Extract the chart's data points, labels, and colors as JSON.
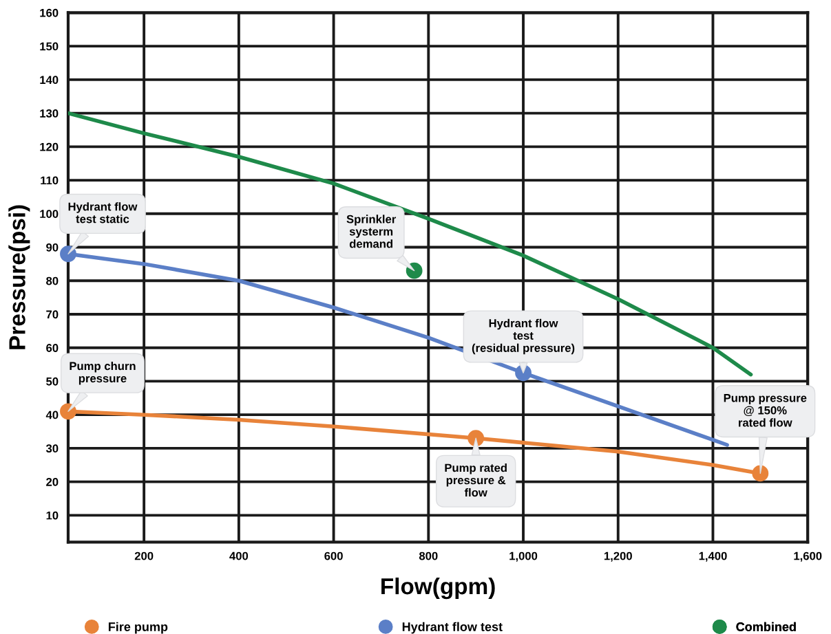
{
  "chart_data": {
    "type": "line",
    "xlabel": "Flow(gpm)",
    "ylabel": "Pressure(psi)",
    "xlim": [
      40,
      1600
    ],
    "xticks": [
      {
        "value": 200,
        "label": "200"
      },
      {
        "value": 400,
        "label": "400"
      },
      {
        "value": 600,
        "label": "600"
      },
      {
        "value": 800,
        "label": "800"
      },
      {
        "value": 1000,
        "label": "1,000"
      },
      {
        "value": 1200,
        "label": "1,200"
      },
      {
        "value": 1400,
        "label": "1,400"
      },
      {
        "value": 1600,
        "label": "1,600"
      }
    ],
    "ylim": [
      2,
      160
    ],
    "yticks": [
      10,
      20,
      30,
      40,
      50,
      60,
      70,
      80,
      90,
      100,
      110,
      120,
      130,
      140,
      150,
      160
    ],
    "grid": true,
    "legend": "bottom",
    "series": [
      {
        "name": "Fire pump",
        "color": "#e8833a",
        "marker": "none",
        "x": [
          40,
          200,
          400,
          600,
          900,
          1200,
          1400,
          1500
        ],
        "values": [
          41,
          40,
          38.5,
          36.5,
          33,
          29,
          25,
          22.5
        ]
      },
      {
        "name": "Hydrant flow test",
        "color": "#5b7fc7",
        "marker": "none",
        "x": [
          40,
          200,
          400,
          600,
          800,
          1000,
          1200,
          1400,
          1430
        ],
        "values": [
          88,
          85,
          80,
          72,
          63,
          52.5,
          42.5,
          32.5,
          31
        ]
      },
      {
        "name": "Combined",
        "color": "#1e8a4a",
        "marker": "none",
        "x": [
          40,
          200,
          400,
          600,
          800,
          1000,
          1200,
          1400,
          1480
        ],
        "values": [
          130,
          124,
          117,
          109,
          98.5,
          87.5,
          74.5,
          60,
          52
        ]
      },
      {
        "color": "#e8833a",
        "type": "scatter",
        "marker": "circle",
        "x": [
          40,
          900,
          1500
        ],
        "values": [
          41,
          33,
          22.5
        ]
      },
      {
        "color": "#5b7fc7",
        "type": "scatter",
        "marker": "circle",
        "x": [
          40,
          1000
        ],
        "values": [
          88,
          52.5
        ]
      },
      {
        "color": "#1e8a4a",
        "type": "scatter",
        "marker": "circle",
        "x": [
          770
        ],
        "values": [
          83
        ]
      }
    ],
    "annotations": [
      {
        "text": "Hydrant flow\ntest static",
        "x": 40,
        "y": 88
      },
      {
        "text": "Pump churn\npressure",
        "x": 40,
        "y": 41
      },
      {
        "text": "Sprinkler\nsysterm\ndemand",
        "x": 770,
        "y": 83
      },
      {
        "text": "Hydrant flow\ntest\n(residual pressure)",
        "x": 1000,
        "y": 52.5
      },
      {
        "text": "Pump rated\npressure &\nflow",
        "x": 900,
        "y": 33
      },
      {
        "text": "Pump pressure\n@ 150%\nrated flow",
        "x": 1500,
        "y": 22.5
      }
    ]
  }
}
